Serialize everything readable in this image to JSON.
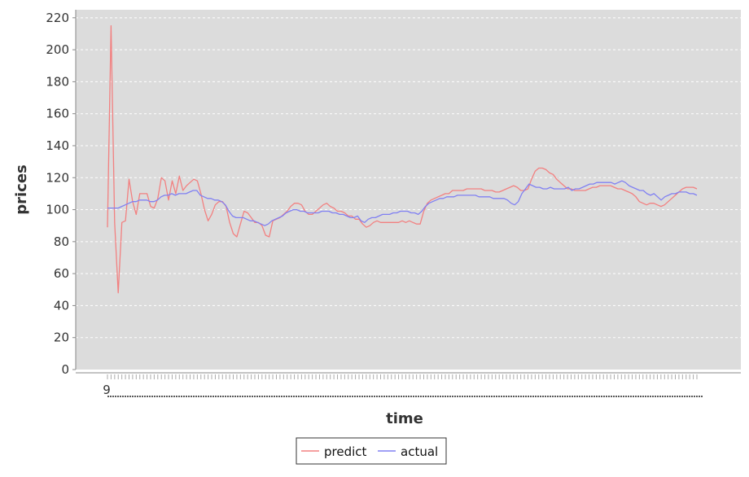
{
  "chart_data": {
    "type": "line",
    "title": "",
    "xlabel": "time",
    "ylabel": "prices",
    "ylim": [
      0,
      225
    ],
    "y_ticks": [
      0,
      20,
      40,
      60,
      80,
      100,
      120,
      140,
      160,
      180,
      200,
      220
    ],
    "x_first_tick_label": "9",
    "grid": "horizontal",
    "legend": "bottom-center",
    "colors": {
      "plot_background": "#dcdcdc",
      "gridline": "#ffffff",
      "predict": "#f28080",
      "actual": "#8080f2"
    },
    "series": [
      {
        "name": "predict",
        "values": [
          89,
          215,
          92,
          48,
          92,
          93,
          119,
          105,
          97,
          110,
          110,
          110,
          102,
          101,
          107,
          120,
          118,
          106,
          118,
          110,
          121,
          112,
          115,
          117,
          119,
          118,
          110,
          100,
          93,
          97,
          103,
          105,
          105,
          102,
          92,
          85,
          83,
          91,
          99,
          98,
          95,
          92,
          92,
          90,
          84,
          83,
          93,
          94,
          95,
          97,
          99,
          102,
          104,
          104,
          103,
          99,
          97,
          97,
          99,
          101,
          103,
          104,
          102,
          101,
          99,
          99,
          98,
          96,
          96,
          94,
          94,
          91,
          89,
          90,
          92,
          93,
          92,
          92,
          92,
          92,
          92,
          92,
          93,
          92,
          93,
          92,
          91,
          91,
          99,
          104,
          106,
          107,
          108,
          109,
          110,
          110,
          112,
          112,
          112,
          112,
          113,
          113,
          113,
          113,
          113,
          112,
          112,
          112,
          111,
          111,
          112,
          113,
          114,
          115,
          114,
          112,
          112,
          113,
          119,
          124,
          126,
          126,
          125,
          123,
          122,
          119,
          117,
          115,
          113,
          113,
          112,
          112,
          112,
          112,
          113,
          114,
          114,
          115,
          115,
          115,
          115,
          114,
          113,
          113,
          112,
          111,
          110,
          108,
          105,
          104,
          103,
          104,
          104,
          103,
          102,
          103,
          105,
          107,
          109,
          111,
          113,
          114,
          114,
          114,
          113
        ]
      },
      {
        "name": "actual",
        "values": [
          101,
          101,
          101,
          101,
          102,
          103,
          104,
          105,
          105,
          106,
          106,
          106,
          105,
          105,
          106,
          108,
          109,
          109,
          110,
          109,
          110,
          110,
          110,
          111,
          112,
          112,
          109,
          108,
          107,
          107,
          106,
          106,
          105,
          103,
          99,
          96,
          95,
          95,
          95,
          94,
          93,
          93,
          92,
          91,
          90,
          91,
          93,
          94,
          95,
          96,
          98,
          99,
          100,
          100,
          99,
          99,
          98,
          98,
          98,
          98,
          99,
          99,
          99,
          98,
          98,
          97,
          97,
          96,
          95,
          95,
          96,
          93,
          92,
          94,
          95,
          95,
          96,
          97,
          97,
          97,
          98,
          98,
          99,
          99,
          99,
          98,
          98,
          97,
          99,
          102,
          104,
          105,
          106,
          107,
          107,
          108,
          108,
          108,
          109,
          109,
          109,
          109,
          109,
          109,
          108,
          108,
          108,
          108,
          107,
          107,
          107,
          107,
          106,
          104,
          103,
          105,
          110,
          113,
          116,
          115,
          114,
          114,
          113,
          113,
          114,
          113,
          113,
          113,
          113,
          114,
          112,
          113,
          113,
          114,
          115,
          116,
          116,
          117,
          117,
          117,
          117,
          117,
          116,
          117,
          118,
          117,
          115,
          114,
          113,
          112,
          112,
          110,
          109,
          110,
          108,
          106,
          108,
          109,
          110,
          110,
          111,
          111,
          111,
          110,
          110,
          109
        ]
      }
    ]
  }
}
